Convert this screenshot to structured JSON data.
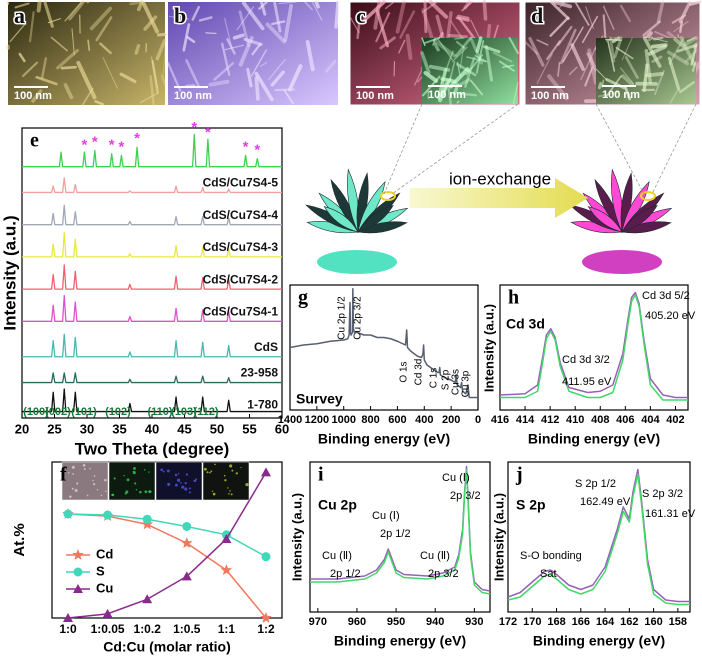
{
  "images": [
    {
      "label": "a",
      "scale": "100 nm"
    },
    {
      "label": "b",
      "scale": "100 nm"
    },
    {
      "label": "c",
      "scale": "100 nm",
      "inset_scale": "100 nm"
    },
    {
      "label": "d",
      "scale": "100 nm",
      "inset_scale": "100 nm"
    }
  ],
  "diagram": {
    "arrow_label": "ion-exchange"
  },
  "chart_data": [
    {
      "type": "line",
      "panel_label": "e",
      "x_label": "Two Theta (degree)",
      "y_label": "Intensity (a.u.)",
      "xlim": [
        20,
        60
      ],
      "xticks": [
        20,
        25,
        30,
        35,
        40,
        45,
        50,
        55,
        60
      ],
      "ylim": [
        0,
        9
      ],
      "x": [
        20,
        24.55,
        24.8,
        25.05,
        26.25,
        26.5,
        26.75,
        27.95,
        28.2,
        28.45,
        36.35,
        36.6,
        36.85,
        43.45,
        43.7,
        43.95,
        47.55,
        47.8,
        48.05,
        51.55,
        51.8,
        52.05,
        60
      ],
      "series": [
        {
          "name": "1-780",
          "color": "#111111",
          "values": [
            0.2,
            0.2,
            0.8,
            0.2,
            0.2,
            0.9,
            0.2,
            0.2,
            0.8,
            0.2,
            0.2,
            0.45,
            0.2,
            0.2,
            0.65,
            0.2,
            0.2,
            0.65,
            0.2,
            0.2,
            0.55,
            0.2,
            0.2
          ]
        },
        {
          "name": "23-958",
          "color": "#2a6a58",
          "values": [
            1.1,
            1.1,
            1.4,
            1.1,
            1.1,
            1.4,
            1.1,
            1.1,
            1.4,
            1.1,
            1.1,
            1.2,
            1.1,
            1.1,
            1.3,
            1.1,
            1.1,
            1.3,
            1.1,
            1.1,
            1.25,
            1.1,
            1.1
          ]
        },
        {
          "name": "CdS",
          "color": "#4ab8b0",
          "values": [
            1.9,
            1.9,
            2.4,
            1.9,
            1.9,
            2.6,
            1.9,
            1.9,
            2.5,
            1.9,
            1.9,
            2.05,
            1.9,
            1.9,
            2.4,
            1.9,
            1.9,
            2.35,
            1.9,
            1.9,
            2.25,
            1.9,
            1.9
          ]
        },
        {
          "name": "CdS/Cu7S4-1",
          "color": "#e050d0",
          "values": [
            3.0,
            3.0,
            3.5,
            3.0,
            3.0,
            3.8,
            3.0,
            3.0,
            3.6,
            3.0,
            3.0,
            3.15,
            3.0,
            3.0,
            3.4,
            3.0,
            3.0,
            3.35,
            3.0,
            3.0,
            3.3,
            3.0,
            3.0
          ]
        },
        {
          "name": "CdS/Cu7S4-2",
          "color": "#f06070",
          "values": [
            4.0,
            4.0,
            4.45,
            4.0,
            4.0,
            4.75,
            4.0,
            4.0,
            4.55,
            4.0,
            4.0,
            4.15,
            4.0,
            4.0,
            4.4,
            4.0,
            4.0,
            4.35,
            4.0,
            4.0,
            4.3,
            4.0,
            4.0
          ]
        },
        {
          "name": "CdS/Cu7S4-3",
          "color": "#e8e840",
          "values": [
            5.0,
            5.0,
            5.4,
            5.0,
            5.0,
            5.75,
            5.0,
            5.0,
            5.55,
            5.0,
            5.0,
            5.1,
            5.0,
            5.0,
            5.35,
            5.0,
            5.0,
            5.3,
            5.0,
            5.0,
            5.25,
            5.0,
            5.0
          ]
        },
        {
          "name": "CdS/Cu7S4-4",
          "color": "#a0a8b8",
          "values": [
            6.0,
            6.0,
            6.35,
            6.0,
            6.0,
            6.6,
            6.0,
            6.0,
            6.4,
            6.0,
            6.0,
            6.1,
            6.0,
            6.0,
            6.25,
            6.0,
            6.0,
            6.25,
            6.0,
            6.0,
            6.2,
            6.0,
            6.0
          ]
        },
        {
          "name": "CdS/Cu7S4-5",
          "color": "#f0a0a0",
          "values": [
            7.0,
            7.0,
            7.2,
            7.0,
            7.0,
            7.45,
            7.0,
            7.0,
            7.25,
            7.0,
            7.0,
            7.05,
            7.0,
            7.0,
            7.2,
            7.0,
            7.0,
            7.15,
            7.0,
            7.0,
            7.1,
            7.0,
            7.0
          ]
        },
        {
          "color": "#40d050",
          "x": [
            20,
            25.75,
            26.0,
            26.25,
            29.35,
            29.6,
            29.85,
            30.95,
            31.2,
            31.45,
            33.55,
            33.8,
            34.05,
            35.05,
            35.3,
            35.55,
            37.45,
            37.7,
            37.95,
            46.25,
            46.5,
            46.75,
            48.35,
            48.6,
            48.85,
            54.15,
            54.4,
            54.65,
            55.95,
            56.2,
            56.45,
            60
          ],
          "values": [
            7.8,
            7.8,
            8.25,
            7.8,
            7.8,
            8.25,
            7.8,
            7.8,
            8.3,
            7.8,
            7.8,
            8.2,
            7.8,
            7.8,
            8.15,
            7.8,
            7.8,
            8.4,
            7.8,
            7.8,
            8.8,
            7.8,
            7.8,
            8.65,
            7.8,
            7.8,
            8.15,
            7.8,
            7.8,
            8.05,
            7.8,
            7.8
          ]
        }
      ],
      "stars": {
        "symbol": "*",
        "color": "#e040e0",
        "x": [
          29.6,
          31.2,
          33.8,
          35.3,
          37.7,
          46.5,
          48.6,
          54.4,
          56.2
        ],
        "values": [
          8.45,
          8.55,
          8.45,
          8.4,
          8.65,
          9.0,
          8.85,
          8.4,
          8.3
        ]
      },
      "hkl_labels": [
        "(100)",
        "(002)",
        "(101)",
        "(102)",
        "(110)",
        "(103)",
        "(112)"
      ]
    },
    {
      "type": "line",
      "panel_label": "g",
      "x_label": "Binding energy (eV)",
      "xlim": [
        1400,
        0
      ],
      "xticks": [
        1400,
        1200,
        1000,
        800,
        600,
        400,
        200,
        0
      ],
      "ylim": [
        0,
        1
      ],
      "x": [
        1400,
        1300,
        1200,
        1100,
        1000,
        970,
        960,
        953,
        950,
        945,
        935,
        932,
        928,
        920,
        900,
        850,
        800,
        750,
        700,
        650,
        600,
        560,
        540,
        531,
        525,
        500,
        450,
        420,
        410,
        405,
        400,
        380,
        300,
        290,
        285,
        280,
        250,
        200,
        170,
        162,
        155,
        130,
        122,
        115,
        90,
        75,
        65,
        30,
        0
      ],
      "series": [
        {
          "color": "#566070",
          "values": [
            0.5,
            0.52,
            0.53,
            0.55,
            0.56,
            0.57,
            0.6,
            0.86,
            0.62,
            0.6,
            0.62,
            0.97,
            0.65,
            0.62,
            0.62,
            0.6,
            0.6,
            0.58,
            0.58,
            0.57,
            0.55,
            0.53,
            0.52,
            0.64,
            0.5,
            0.47,
            0.43,
            0.42,
            0.45,
            0.52,
            0.4,
            0.36,
            0.3,
            0.3,
            0.34,
            0.28,
            0.26,
            0.24,
            0.22,
            0.28,
            0.2,
            0.18,
            0.22,
            0.15,
            0.13,
            0.2,
            0.1,
            0.1,
            0.1
          ]
        }
      ],
      "annotations": [
        "Cu 2p 1/2",
        "Cu 2p 3/2",
        "O 1s",
        "Cd 3d",
        "C 1s",
        "S 2p",
        "Cu 3s",
        "Cu 3p",
        "Survey"
      ]
    },
    {
      "type": "line",
      "panel_label": "h",
      "x_label": "Binding energy (eV)",
      "y_label": "Intensity (a.u.)",
      "xlim": [
        416,
        401
      ],
      "xticks": [
        416,
        414,
        412,
        410,
        408,
        406,
        404,
        402
      ],
      "ylim": [
        0,
        1
      ],
      "x": [
        416,
        414,
        413,
        412.6,
        412.3,
        411.95,
        411.6,
        411.2,
        410.5,
        409,
        408,
        407,
        406.2,
        405.8,
        405.5,
        405.2,
        404.9,
        404.5,
        404,
        403,
        402,
        401
      ],
      "series": [
        {
          "color": "#9a60b8",
          "values": [
            0.12,
            0.13,
            0.2,
            0.42,
            0.6,
            0.65,
            0.58,
            0.38,
            0.18,
            0.14,
            0.15,
            0.2,
            0.45,
            0.72,
            0.9,
            0.94,
            0.85,
            0.55,
            0.25,
            0.12,
            0.1,
            0.1
          ]
        },
        {
          "color": "#40d868",
          "values": [
            0.1,
            0.1,
            0.15,
            0.38,
            0.57,
            0.63,
            0.56,
            0.35,
            0.15,
            0.1,
            0.1,
            0.14,
            0.4,
            0.68,
            0.87,
            0.92,
            0.83,
            0.52,
            0.2,
            0.08,
            0.08,
            0.08
          ]
        }
      ],
      "annotations": [
        "Cd 3d",
        "Cd 3d 5/2",
        "405.20 eV",
        "Cd 3d 3/2",
        "411.95 eV"
      ]
    },
    {
      "type": "line",
      "panel_label": "f",
      "x_label": "Cd:Cu (molar ratio)",
      "y_label": "At.%",
      "categories": [
        "1:0",
        "1:0.05",
        "1:0.2",
        "1:0.5",
        "1:1",
        "1:2"
      ],
      "ylim": [
        0,
        75
      ],
      "legend": true,
      "series": [
        {
          "name": "Cd",
          "color": "#f07860",
          "marker": "star",
          "values": [
            50,
            49,
            45,
            36,
            23,
            0
          ]
        },
        {
          "name": "S",
          "color": "#40d8b8",
          "marker": "circle",
          "values": [
            50,
            49.5,
            47.5,
            44,
            40,
            29.5
          ]
        },
        {
          "name": "Cu",
          "color": "#8a2a8a",
          "marker": "triangle",
          "values": [
            0,
            2,
            9,
            20,
            38,
            70
          ]
        }
      ]
    },
    {
      "type": "line",
      "panel_label": "i",
      "x_label": "Binding energy (eV)",
      "y_label": "Intensity (a.u.)",
      "xlim": [
        972,
        926
      ],
      "xticks": [
        970,
        960,
        950,
        940,
        930
      ],
      "ylim": [
        0,
        1
      ],
      "x": [
        972,
        965,
        958,
        955,
        953,
        952,
        951,
        950,
        948,
        942,
        938,
        935,
        934,
        933,
        932.5,
        932,
        931.5,
        931,
        930,
        928,
        926
      ],
      "series": [
        {
          "color": "#9a60b8",
          "values": [
            0.22,
            0.22,
            0.24,
            0.28,
            0.35,
            0.42,
            0.35,
            0.28,
            0.25,
            0.24,
            0.26,
            0.3,
            0.38,
            0.55,
            0.8,
            0.97,
            0.7,
            0.4,
            0.2,
            0.15,
            0.14
          ]
        },
        {
          "color": "#40d868",
          "values": [
            0.2,
            0.2,
            0.22,
            0.26,
            0.33,
            0.4,
            0.33,
            0.26,
            0.23,
            0.22,
            0.24,
            0.28,
            0.36,
            0.52,
            0.78,
            0.95,
            0.68,
            0.38,
            0.18,
            0.13,
            0.12
          ]
        }
      ],
      "annotations": [
        "Cu 2p",
        "Cu (Ⅰ)",
        "2p 1/2",
        "Cu (Ⅱ)",
        "2p 1/2",
        "Cu (Ⅰ)",
        "2p 3/2",
        "Cu (Ⅱ)",
        "2p 3/2"
      ]
    },
    {
      "type": "line",
      "panel_label": "j",
      "x_label": "Binding energy (eV)",
      "y_label": "Intensity (a.u.)",
      "xlim": [
        172,
        157
      ],
      "xticks": [
        172,
        170,
        168,
        166,
        164,
        162,
        160,
        158
      ],
      "ylim": [
        0,
        1
      ],
      "x": [
        172,
        171,
        170,
        169,
        168.5,
        168,
        167,
        166,
        165,
        164,
        163,
        162.5,
        162,
        161.7,
        161.3,
        161,
        160.5,
        160,
        159,
        158,
        157
      ],
      "series": [
        {
          "color": "#9a60b8",
          "values": [
            0.1,
            0.13,
            0.2,
            0.27,
            0.28,
            0.25,
            0.18,
            0.15,
            0.18,
            0.3,
            0.55,
            0.7,
            0.62,
            0.8,
            0.95,
            0.75,
            0.35,
            0.15,
            0.08,
            0.07,
            0.07
          ]
        },
        {
          "color": "#40d868",
          "values": [
            0.08,
            0.1,
            0.17,
            0.24,
            0.25,
            0.22,
            0.15,
            0.12,
            0.15,
            0.27,
            0.52,
            0.67,
            0.6,
            0.77,
            0.92,
            0.72,
            0.32,
            0.12,
            0.06,
            0.05,
            0.05
          ]
        }
      ],
      "annotations": [
        "S 2p",
        "S 2p 1/2",
        "162.49 eV",
        "S 2p 3/2",
        "161.31 eV",
        "S-O bonding",
        "Sat"
      ]
    }
  ]
}
